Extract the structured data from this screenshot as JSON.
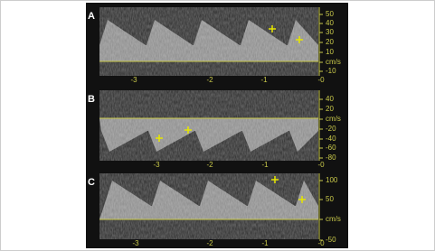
{
  "panels": [
    {
      "label": "A",
      "y_labels": [
        "50",
        "40",
        "30",
        "20",
        "10",
        "cm/s",
        "-10"
      ],
      "x_labels": [
        "-3",
        "-2",
        "-1",
        "-0"
      ]
    },
    {
      "label": "B",
      "y_labels": [
        "40",
        "20",
        "cm/s",
        "-20",
        "-40",
        "-60",
        "-80"
      ],
      "x_labels": [
        "-3",
        "-2",
        "-1",
        "-0"
      ]
    },
    {
      "label": "C",
      "y_labels": [
        "100",
        "50",
        "cm/s",
        "-50"
      ],
      "x_labels": [
        "-3",
        "-2",
        "-1",
        "-0"
      ]
    }
  ]
}
